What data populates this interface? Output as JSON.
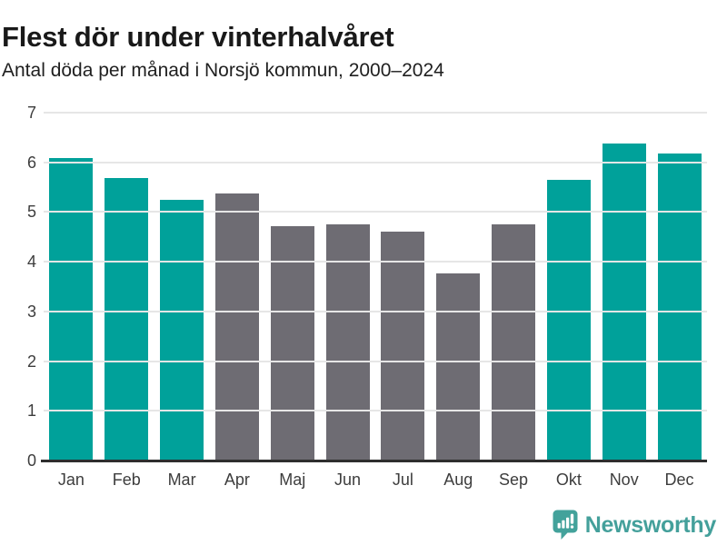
{
  "header": {
    "title": "Flest dör under vinterhalvåret",
    "subtitle": "Antal döda per månad i Norsjö kommun, 2000–2024"
  },
  "footer": {
    "brand": "Newsworthy"
  },
  "colors": {
    "highlight_teal": "#00a19a",
    "muted_gray": "#6e6c73",
    "brand_teal": "#44a09b",
    "grid": "#e6e6e6",
    "axis_line": "#2e2e2e",
    "text_dark": "#191919",
    "axis_text": "#3d3d3d"
  },
  "chart_data": {
    "type": "bar",
    "title": "Flest dör under vinterhalvåret",
    "subtitle": "Antal döda per månad i Norsjö kommun, 2000–2024",
    "categories": [
      "Jan",
      "Feb",
      "Mar",
      "Apr",
      "Maj",
      "Jun",
      "Jul",
      "Aug",
      "Sep",
      "Okt",
      "Nov",
      "Dec"
    ],
    "values": [
      6.08,
      5.68,
      5.24,
      5.37,
      4.72,
      4.76,
      4.61,
      3.76,
      4.76,
      5.65,
      6.37,
      6.17
    ],
    "bar_colors": [
      "#00a19a",
      "#00a19a",
      "#00a19a",
      "#6e6c73",
      "#6e6c73",
      "#6e6c73",
      "#6e6c73",
      "#6e6c73",
      "#6e6c73",
      "#00a19a",
      "#00a19a",
      "#00a19a"
    ],
    "xlabel": "",
    "ylabel": "",
    "ylim": [
      0,
      7
    ],
    "yticks": [
      0,
      1,
      2,
      3,
      4,
      5,
      6,
      7
    ],
    "grid": true,
    "legend": false
  }
}
